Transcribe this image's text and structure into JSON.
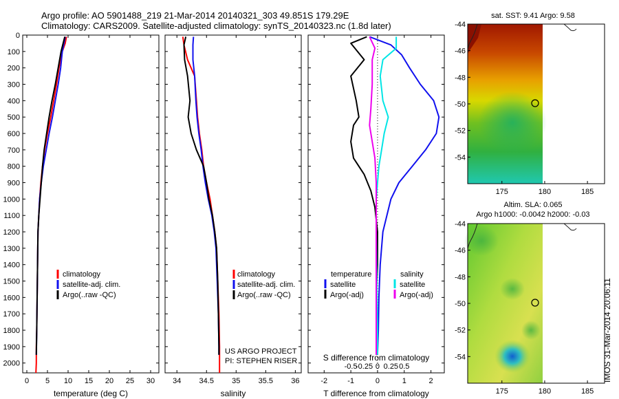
{
  "header": {
    "title_line1": "Argo profile: AO 5901488_219 21-Mar-2014 20140321_303 49.851S 179.29E",
    "title_line2": "Climatology: CARS2009. Satellite-adjusted climatology: synTS_20140323.nc (1.8d later)"
  },
  "colors": {
    "climatology": "#ff0000",
    "satellite": "#1010ee",
    "argo": "#000000",
    "cyan": "#00e5e5",
    "magenta": "#ee00ee"
  },
  "stamp": "IMOS 31-Mar-2014 20:06:11",
  "chart_data": [
    {
      "id": "temperature",
      "type": "line",
      "xlabel": "temperature (deg C)",
      "ylabel": "",
      "xlim": [
        -1,
        32
      ],
      "ylim": [
        2060,
        0
      ],
      "xticks": [
        0,
        5,
        10,
        15,
        20,
        25,
        30
      ],
      "xtick_labels": [
        "0",
        "5",
        "10",
        "15",
        "20",
        "25",
        "30"
      ],
      "yticks": [
        0,
        100,
        200,
        300,
        400,
        500,
        600,
        700,
        800,
        900,
        1000,
        1100,
        1200,
        1300,
        1400,
        1500,
        1600,
        1700,
        1800,
        1900,
        2000
      ],
      "ytick_labels": [
        "0",
        "100",
        "200",
        "300",
        "400",
        "500",
        "600",
        "700",
        "800",
        "900",
        "1000",
        "1100",
        "1200",
        "1300",
        "1400",
        "1500",
        "1600",
        "1700",
        "1800",
        "1900",
        "2000"
      ],
      "legend": [
        "climatology",
        "satellite-adj. clim.",
        "Argo(..raw -QC)"
      ],
      "legend_colors": [
        "#ff0000",
        "#1010ee",
        "#000000"
      ],
      "series": [
        {
          "name": "climatology",
          "color": "#ff0000",
          "x": [
            9.6,
            9.3,
            8.6,
            7.8,
            7.2,
            6.5,
            5.8,
            5.0,
            4.3,
            3.8,
            3.4,
            3.1,
            2.9,
            2.7,
            2.6,
            2.5,
            2.4,
            2.3,
            2.3,
            2.2
          ],
          "y": [
            10,
            50,
            100,
            200,
            300,
            400,
            500,
            600,
            700,
            800,
            900,
            1000,
            1100,
            1200,
            1400,
            1600,
            1800,
            1900,
            2000,
            2060
          ]
        },
        {
          "name": "satellite-adj. clim.",
          "color": "#1010ee",
          "x": [
            9.3,
            9.0,
            8.6,
            8.2,
            7.6,
            6.9,
            6.2,
            5.4,
            4.7,
            4.0,
            3.5,
            3.1,
            2.9,
            2.7,
            2.6,
            2.5,
            2.4,
            2.3
          ],
          "y": [
            10,
            50,
            100,
            200,
            300,
            400,
            500,
            600,
            700,
            800,
            900,
            1000,
            1100,
            1200,
            1400,
            1600,
            1800,
            1950
          ]
        },
        {
          "name": "Argo(..raw -QC)",
          "color": "#000000",
          "x": [
            9.2,
            8.8,
            8.3,
            7.6,
            6.9,
            6.1,
            5.4,
            4.8,
            4.2,
            3.8,
            3.5,
            3.2,
            2.9,
            2.7,
            2.6,
            2.5,
            2.4,
            2.3
          ],
          "y": [
            10,
            50,
            100,
            200,
            300,
            400,
            500,
            600,
            700,
            800,
            900,
            1000,
            1100,
            1200,
            1400,
            1600,
            1800,
            1950
          ]
        }
      ]
    },
    {
      "id": "salinity",
      "type": "line",
      "xlabel": "salinity",
      "ylabel": "",
      "xlim": [
        33.8,
        36.1
      ],
      "ylim": [
        2060,
        0
      ],
      "xticks": [
        34,
        34.5,
        35,
        35.5,
        36
      ],
      "xtick_labels": [
        "34",
        "34.5",
        "35",
        "35.5",
        "36"
      ],
      "legend": [
        "climatology",
        "satellite-adj. clim.",
        "Argo(..raw -QC)"
      ],
      "legend_colors": [
        "#ff0000",
        "#1010ee",
        "#000000"
      ],
      "annotations": [
        "US ARGO PROJECT",
        "PI: STEPHEN RISER"
      ],
      "series": [
        {
          "name": "climatology",
          "color": "#ff0000",
          "x": [
            34.1,
            34.12,
            34.18,
            34.3,
            34.33,
            34.35,
            34.38,
            34.42,
            34.45,
            34.5,
            34.56,
            34.6,
            34.64,
            34.67,
            34.69,
            34.71,
            34.72,
            34.72
          ],
          "y": [
            10,
            60,
            150,
            250,
            400,
            500,
            600,
            700,
            800,
            900,
            1000,
            1100,
            1200,
            1300,
            1500,
            1700,
            1900,
            2060
          ]
        },
        {
          "name": "satellite-adj. clim.",
          "color": "#1010ee",
          "x": [
            34.28,
            34.27,
            34.27,
            34.3,
            34.32,
            34.34,
            34.37,
            34.41,
            34.44,
            34.48,
            34.53,
            34.59,
            34.63,
            34.66,
            34.68,
            34.7,
            34.71,
            34.71
          ],
          "y": [
            10,
            60,
            150,
            250,
            400,
            500,
            600,
            700,
            800,
            900,
            1000,
            1100,
            1200,
            1300,
            1500,
            1700,
            1900,
            1950
          ]
        },
        {
          "name": "Argo(..raw -QC)",
          "color": "#000000",
          "x": [
            34.15,
            34.12,
            34.13,
            34.18,
            34.22,
            34.19,
            34.24,
            34.33,
            34.45,
            34.5,
            34.54,
            34.6,
            34.64,
            34.67,
            34.69,
            34.7,
            34.71,
            34.71
          ],
          "y": [
            10,
            60,
            150,
            250,
            400,
            500,
            600,
            700,
            800,
            900,
            1000,
            1100,
            1200,
            1300,
            1500,
            1700,
            1900,
            1950
          ]
        }
      ]
    },
    {
      "id": "difference",
      "type": "line",
      "xlabel": "T difference from climatology",
      "xlabel2": "S difference from climatology",
      "xlim": [
        -2.6,
        2.5
      ],
      "ylim": [
        2060,
        0
      ],
      "xticks": [
        -2,
        -1,
        0,
        1,
        2
      ],
      "xtick_labels": [
        "-2",
        "-1",
        "0",
        "1",
        "2"
      ],
      "s_ticks": [
        -1,
        -0.5,
        0,
        0.5,
        1
      ],
      "s_tick_labels": [
        "-0.5",
        "-0.25",
        "0",
        "0.25",
        "0.5"
      ],
      "legend_titles": [
        "temperature",
        "salinity"
      ],
      "legend_left": [
        "satellite",
        "Argo(-adj)"
      ],
      "legend_left_colors": [
        "#1010ee",
        "#000000"
      ],
      "legend_right": [
        "satellite",
        "Argo(-adj)"
      ],
      "legend_right_colors": [
        "#00e5e5",
        "#ee00ee"
      ],
      "series": [
        {
          "name": "T satellite",
          "color": "#1010ee",
          "x": [
            -0.3,
            0.5,
            0.9,
            1.2,
            1.6,
            2.1,
            2.3,
            2.2,
            1.8,
            1.3,
            0.8,
            0.5,
            0.35,
            0.2,
            0.1,
            0.05,
            0.03,
            0.0
          ],
          "y": [
            10,
            60,
            120,
            200,
            300,
            400,
            500,
            600,
            700,
            800,
            900,
            1000,
            1100,
            1200,
            1400,
            1600,
            1800,
            1950
          ]
        },
        {
          "name": "T Argo(-adj)",
          "color": "#000000",
          "x": [
            -0.4,
            -1.0,
            -0.5,
            -1.0,
            -0.8,
            -0.7,
            -0.9,
            -1.0,
            -0.9,
            -0.5,
            -0.25,
            -0.1,
            0.0,
            0.0,
            -0.05,
            -0.05,
            -0.05
          ],
          "y": [
            10,
            50,
            150,
            250,
            400,
            500,
            550,
            650,
            750,
            850,
            950,
            1050,
            1200,
            1400,
            1600,
            1800,
            1950
          ]
        },
        {
          "name": "S satellite",
          "color": "#00e5e5",
          "x": [
            0.7,
            0.7,
            0.2,
            0.1,
            0.2,
            0.4,
            0.25,
            0.15,
            0.05,
            0.0,
            -0.05,
            -0.05,
            -0.03,
            0.0,
            0.0
          ],
          "y": [
            10,
            80,
            150,
            250,
            400,
            500,
            600,
            700,
            800,
            900,
            1000,
            1200,
            1500,
            1800,
            1950
          ]
        },
        {
          "name": "S Argo(-adj)",
          "color": "#ee00ee",
          "x": [
            -0.3,
            -0.1,
            -0.2,
            -0.2,
            -0.25,
            -0.3,
            -0.2,
            -0.1,
            -0.05,
            -0.05,
            -0.05,
            -0.05,
            -0.05
          ],
          "y": [
            10,
            80,
            150,
            300,
            450,
            550,
            650,
            750,
            900,
            1100,
            1400,
            1700,
            1950
          ]
        }
      ]
    },
    {
      "id": "sst_map",
      "type": "heatmap",
      "title": "sat. SST: 9.41  Argo: 9.58",
      "xlim": [
        171,
        187
      ],
      "ylim": [
        -56,
        -44
      ],
      "xticks": [
        175,
        180,
        185
      ],
      "xtick_labels": [
        "175",
        "180",
        "185"
      ],
      "yticks": [
        -44,
        -46,
        -48,
        -50,
        -52,
        -54
      ],
      "ytick_labels": [
        "-44",
        "-46",
        "-48",
        "-50",
        "-52",
        "-54"
      ],
      "argo_position": [
        179.29,
        -49.851
      ]
    },
    {
      "id": "sla_map",
      "type": "heatmap",
      "title": "Altim. SLA: 0.065",
      "title2": "Argo h1000: -0.0042  h2000: -0.03",
      "xlim": [
        171,
        187
      ],
      "ylim": [
        -56,
        -44
      ],
      "xticks": [
        175,
        180,
        185
      ],
      "xtick_labels": [
        "175",
        "180",
        "185"
      ],
      "yticks": [
        -44,
        -46,
        -48,
        -50,
        -52,
        -54
      ],
      "ytick_labels": [
        "-44",
        "-46",
        "-48",
        "-50",
        "-52",
        "-54"
      ],
      "argo_position": [
        179.29,
        -49.851
      ]
    }
  ]
}
